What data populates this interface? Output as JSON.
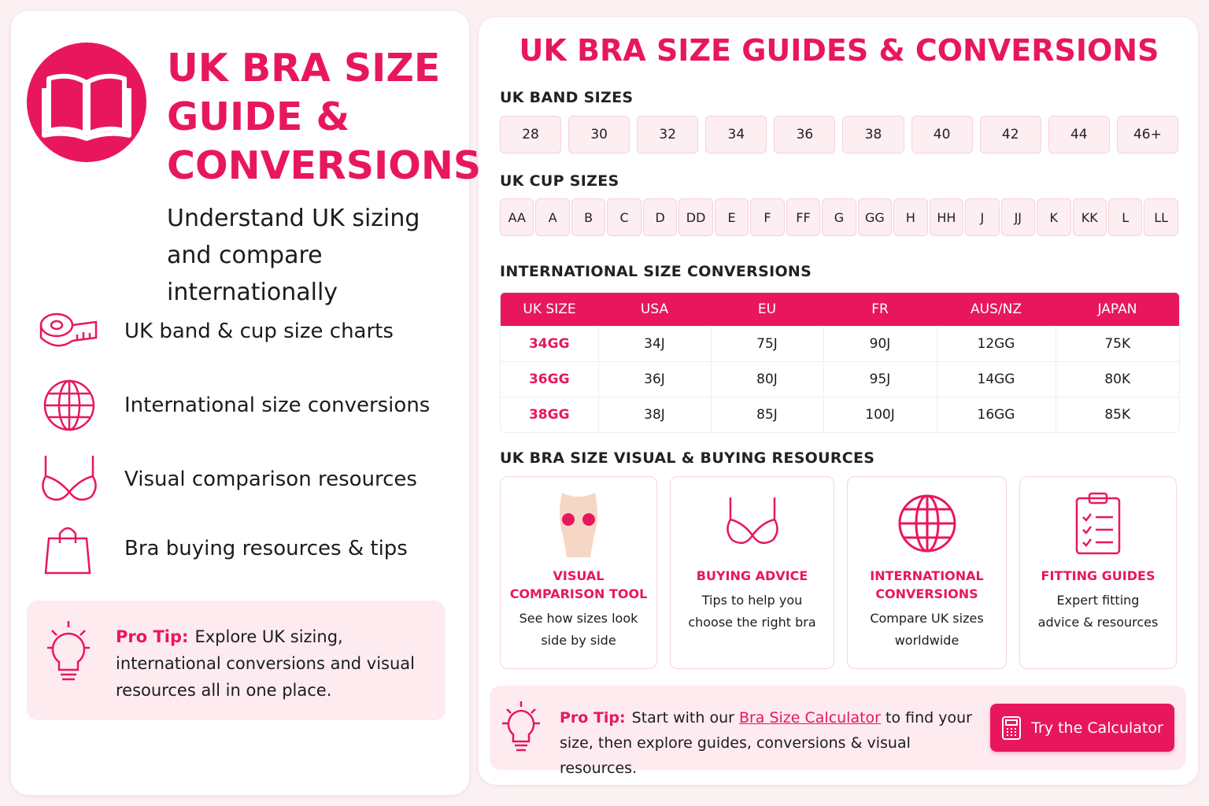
{
  "left": {
    "title": "UK BRA SIZE GUIDE & CONVERSIONS",
    "subtitle": "Understand UK sizing and compare internationally",
    "features": [
      "UK band & cup size charts",
      "International size conversions",
      "Visual comparison resources",
      "Bra buying resources & tips"
    ],
    "tip": {
      "label": "Pro Tip:",
      "text": "Explore UK sizing, international conversions and visual resources all in one place."
    }
  },
  "right": {
    "title": "UK BRA SIZE GUIDES & CONVERSIONS",
    "band": {
      "heading": "UK BAND SIZES",
      "sizes": [
        "28",
        "30",
        "32",
        "34",
        "36",
        "38",
        "40",
        "42",
        "44",
        "46+"
      ]
    },
    "cup": {
      "heading": "UK CUP SIZES",
      "sizes": [
        "AA",
        "A",
        "B",
        "C",
        "D",
        "DD",
        "E",
        "F",
        "FF",
        "G",
        "GG",
        "H",
        "HH",
        "J",
        "JJ",
        "K",
        "KK",
        "L",
        "LL"
      ]
    },
    "conversions": {
      "heading": "INTERNATIONAL SIZE CONVERSIONS",
      "columns": [
        "UK SIZE",
        "USA",
        "EU",
        "FR",
        "AUS/NZ",
        "JAPAN"
      ],
      "rows": [
        [
          "34GG",
          "34J",
          "75J",
          "90J",
          "12GG",
          "75K"
        ],
        [
          "36GG",
          "36J",
          "80J",
          "95J",
          "14GG",
          "80K"
        ],
        [
          "38GG",
          "38J",
          "85J",
          "100J",
          "16GG",
          "85K"
        ]
      ]
    },
    "resources": {
      "heading": "UK BRA SIZE VISUAL & BUYING RESOURCES",
      "cards": [
        {
          "title": "VISUAL COMPARISON TOOL",
          "text": "See how sizes look side by side"
        },
        {
          "title": "BUYING ADVICE",
          "text": "Tips to help you choose the right bra"
        },
        {
          "title": "INTERNATIONAL CONVERSIONS",
          "text": "Compare UK sizes worldwide"
        },
        {
          "title": "FITTING GUIDES",
          "text": "Expert fitting advice & resources"
        }
      ]
    },
    "tip": {
      "label": "Pro Tip:",
      "before": "Start with our",
      "link": "Bra Size Calculator",
      "after": "to find your size, then explore guides, conversions & visual resources.",
      "button": "Try the Calculator"
    }
  }
}
